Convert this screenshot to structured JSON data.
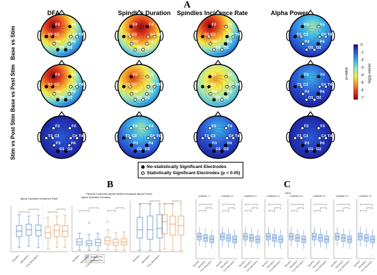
{
  "panels": {
    "a": "A",
    "b": "B",
    "c": "C"
  },
  "columns": [
    "DFA",
    "Spindles Duration",
    "Spindles Incidence Rate",
    "Alpha Power"
  ],
  "rows": [
    "Base vs Stim",
    "Base vs Post Stim",
    "Stim vs Post Stim"
  ],
  "colorbar": {
    "ticks": [
      "0",
      "-1",
      "-2",
      "-3",
      "-4",
      "-5",
      "-6",
      "-7"
    ],
    "label_left": "p-value",
    "label_right": "log(p-value)",
    "colors": [
      "#1a0f8f",
      "#2a5ad8",
      "#3fb6e6",
      "#a6e6b3",
      "#f3ea4c",
      "#f39b2a",
      "#e03a20",
      "#8a0c0c"
    ]
  },
  "legend": {
    "item1": "No-statistically Significant Electrodes",
    "item2": "Statistically Significant Electrodes (p < 0.05)"
  },
  "electrodes": [
    "F3",
    "F4",
    "C3",
    "C4",
    "P3",
    "P4",
    "O1",
    "O2",
    "T3",
    "T4"
  ],
  "panel_b": {
    "group_title": "Parietal Channels Alpha Rhythm Analysis",
    "sub1": "Alpha Spindles Incidence Rate",
    "sub2": "Alpha Spindles Duration",
    "sub3": "Alpha Power",
    "legend_items": [
      "Channel P3",
      "Channel P4"
    ],
    "xcats": [
      "Baseline",
      "Stimulation",
      "Post Stimulation"
    ]
  },
  "panel_c": {
    "group_title": "DFA",
    "channels": [
      "Channel T7",
      "Channel F3",
      "Channel P3",
      "Channel O1",
      "Channel O2",
      "Channel P4",
      "Channel F4",
      "Channel T8"
    ],
    "xcats": [
      "Baseline",
      "Stimulation",
      "Post Stimulation"
    ]
  },
  "colors": {
    "blue": "#4a7fc1",
    "orange": "#d9904a",
    "blue_fill": "#c9dbf1"
  }
}
